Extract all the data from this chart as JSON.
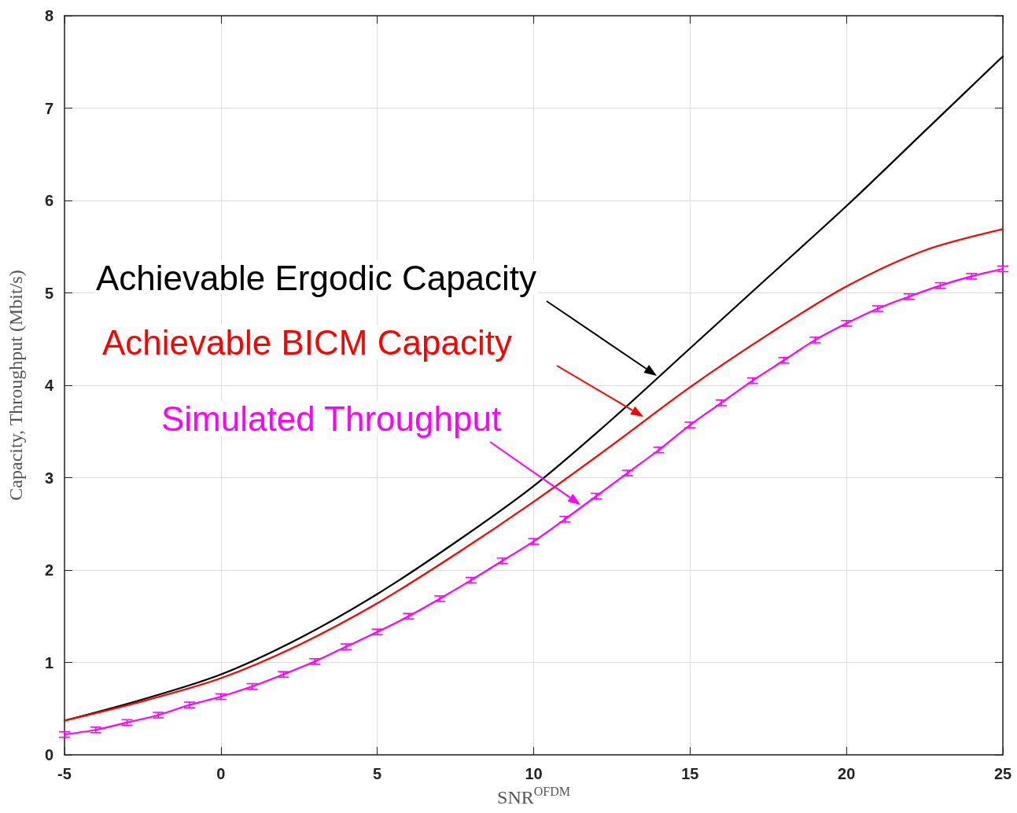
{
  "chart_data": {
    "type": "line",
    "xlabel": "SNR$^{OFDM}$",
    "ylabel": "Capacity, Throughput (Mbit/s)",
    "xlim": [
      -5,
      25
    ],
    "xticks": [
      -5,
      0,
      5,
      10,
      15,
      20,
      25
    ],
    "ylim": [
      0,
      8
    ],
    "yticks": [
      0,
      1,
      2,
      3,
      4,
      5,
      6,
      7,
      8
    ],
    "grid": true,
    "marker": "none",
    "line_style": "solid",
    "series": [
      {
        "color": "#000000",
        "x": [
          -5,
          -2.5,
          0,
          2.5,
          5,
          7.5,
          10,
          12.5,
          15,
          17.5,
          20,
          22.5,
          25
        ],
        "values": [
          0.37,
          0.6,
          0.87,
          1.26,
          1.74,
          2.3,
          2.91,
          3.63,
          4.4,
          5.17,
          5.94,
          6.75,
          7.56
        ]
      },
      {
        "color": "#ff0000",
        "x": [
          -5,
          -2.5,
          0,
          2.5,
          5,
          7.5,
          10,
          12.5,
          15,
          17.5,
          20,
          22.5,
          25
        ],
        "values": [
          0.37,
          0.58,
          0.83,
          1.19,
          1.64,
          2.17,
          2.74,
          3.35,
          3.98,
          4.55,
          5.07,
          5.46,
          5.69
        ]
      },
      {
        "color": "#ff00ff",
        "x": [
          -5,
          -4,
          -3,
          -2,
          -1,
          0,
          1,
          2,
          3,
          4,
          5,
          6,
          7,
          8,
          9,
          10,
          11,
          12,
          13,
          14,
          15,
          16,
          17,
          18,
          19,
          20,
          21,
          22,
          23,
          24,
          25
        ],
        "values": [
          0.22,
          0.27,
          0.35,
          0.43,
          0.54,
          0.63,
          0.74,
          0.87,
          1.01,
          1.17,
          1.33,
          1.5,
          1.69,
          1.89,
          2.1,
          2.31,
          2.55,
          2.8,
          3.05,
          3.3,
          3.57,
          3.81,
          4.05,
          4.27,
          4.49,
          4.67,
          4.83,
          4.96,
          5.08,
          5.18,
          5.26
        ],
        "errors": [
          0.03,
          0.03,
          0.03,
          0.03,
          0.03,
          0.03,
          0.03,
          0.03,
          0.03,
          0.03,
          0.03,
          0.03,
          0.03,
          0.03,
          0.03,
          0.03,
          0.03,
          0.03,
          0.03,
          0.03,
          0.03,
          0.03,
          0.03,
          0.03,
          0.03,
          0.03,
          0.03,
          0.03,
          0.03,
          0.03,
          0.03
        ]
      }
    ],
    "annotations": [
      "Achievable Ergodic Capacity",
      "Achievable BICM Capacity",
      "Simulated Throughput"
    ]
  }
}
